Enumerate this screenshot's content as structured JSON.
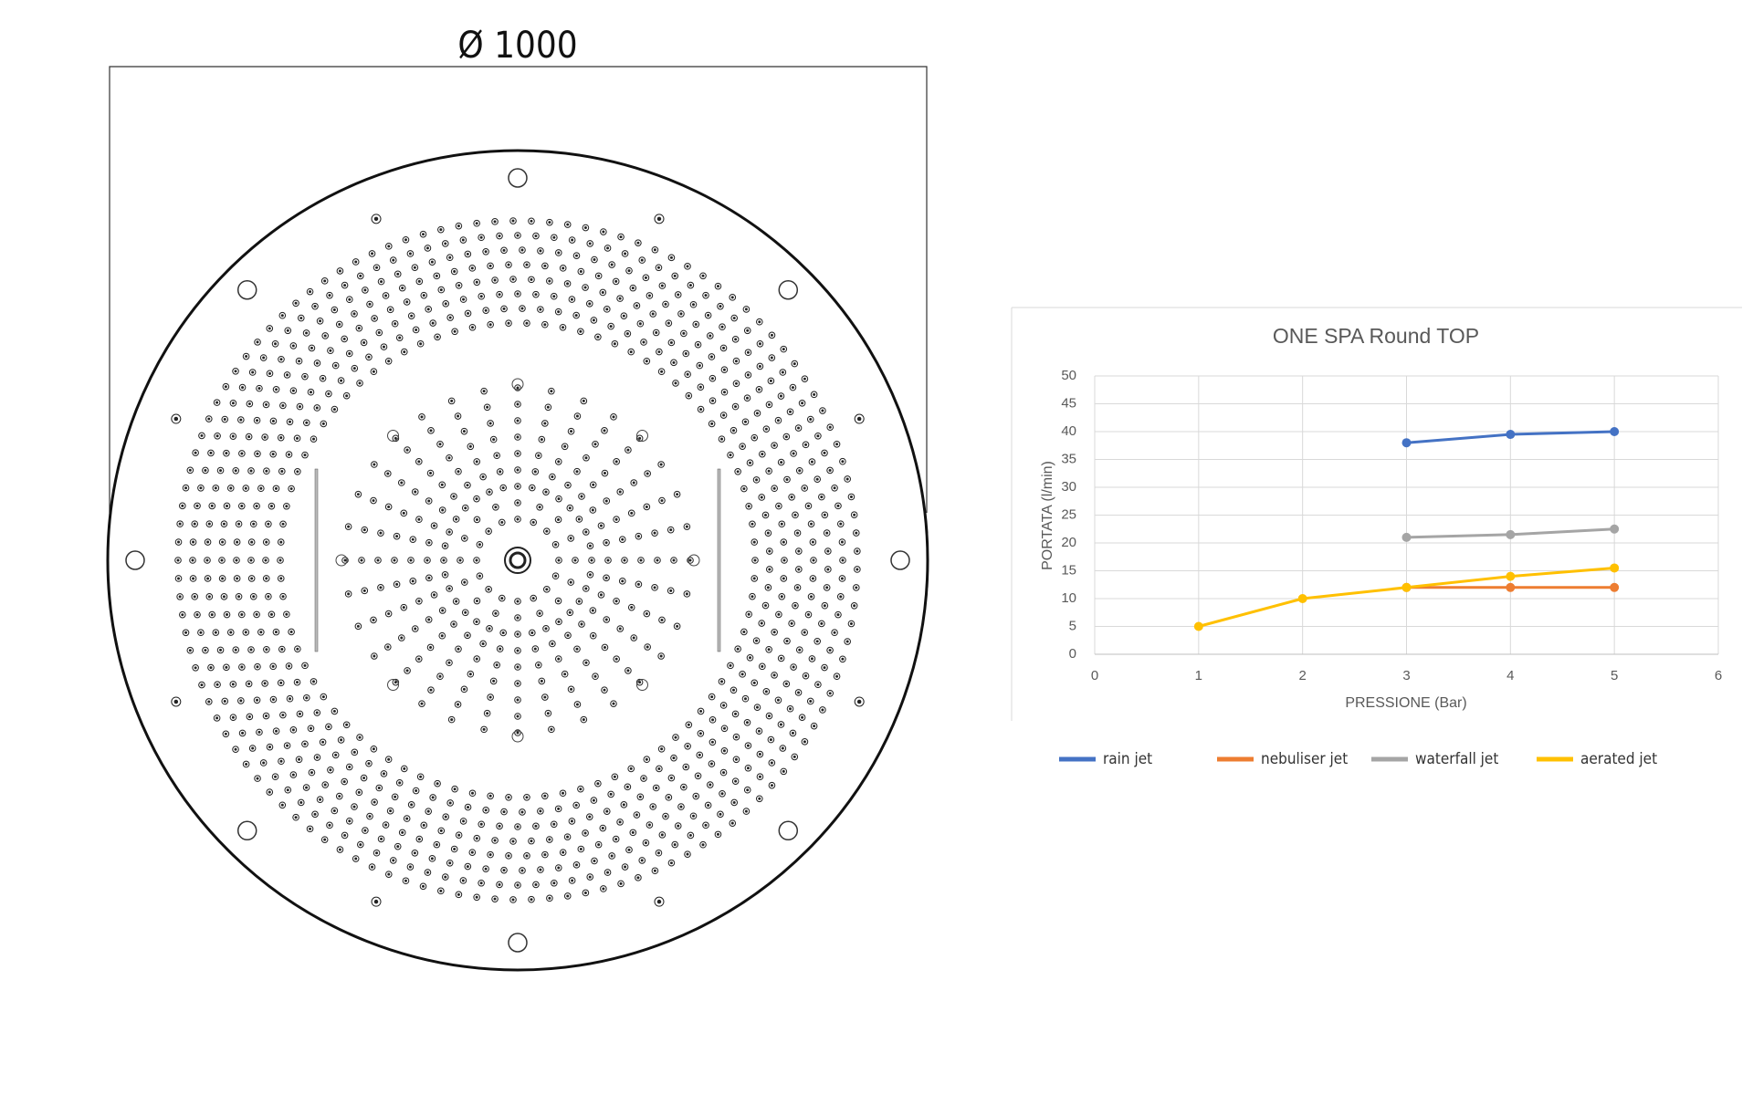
{
  "drawing": {
    "dimension_label": "Ø 1000"
  },
  "chart_data": {
    "type": "line",
    "title": "ONE SPA Round TOP",
    "xlabel": "PRESSIONE (Bar)",
    "ylabel": "PORTATA (l/min)",
    "xlim": [
      0,
      6
    ],
    "xticks": [
      0,
      1,
      2,
      3,
      4,
      5,
      6
    ],
    "ylim": [
      0,
      50
    ],
    "yticks": [
      0,
      5,
      10,
      15,
      20,
      25,
      30,
      35,
      40,
      45,
      50
    ],
    "grid": true,
    "legend": "bottom",
    "series": [
      {
        "name": "rain jet",
        "color": "#4472c4",
        "x": [
          3,
          4,
          5
        ],
        "values": [
          38,
          39.5,
          40
        ]
      },
      {
        "name": "nebuliser jet",
        "color": "#ed7d31",
        "x": [
          3,
          4,
          5
        ],
        "values": [
          12,
          12,
          12
        ]
      },
      {
        "name": "waterfall jet",
        "color": "#a5a5a5",
        "x": [
          3,
          4,
          5
        ],
        "values": [
          21,
          21.5,
          22.5
        ]
      },
      {
        "name": "aerated jet",
        "color": "#ffc000",
        "x": [
          1,
          2,
          3,
          4,
          5
        ],
        "values": [
          5,
          10,
          12,
          14,
          15.5
        ]
      }
    ]
  }
}
